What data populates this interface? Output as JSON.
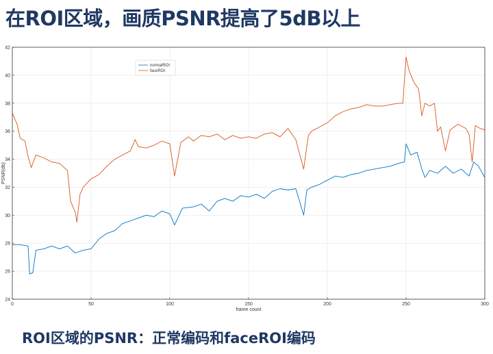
{
  "slide": {
    "title": "在ROI区域，画质PSNR提高了5dB以上",
    "caption": "ROI区域的PSNR：正常编码和faceROI编码"
  },
  "colors": {
    "title": "#1f3864",
    "normal": "#0072bd",
    "face": "#d95319",
    "grid": "#e6e6e6",
    "axis": "#333333"
  },
  "chart_data": {
    "type": "line",
    "xlabel": "frame count",
    "ylabel": "PSNR(db)",
    "xlim": [
      0,
      300
    ],
    "ylim": [
      24,
      42
    ],
    "xticks": [
      0,
      50,
      100,
      150,
      200,
      250,
      300
    ],
    "yticks": [
      24,
      26,
      28,
      30,
      32,
      34,
      36,
      38,
      40,
      42
    ],
    "grid": true,
    "legend_position": "top-left",
    "series": [
      {
        "name": "normalROI",
        "color": "#0072bd",
        "points": [
          [
            0,
            27.9
          ],
          [
            5,
            27.9
          ],
          [
            10,
            27.8
          ],
          [
            11,
            25.8
          ],
          [
            13,
            25.9
          ],
          [
            15,
            27.5
          ],
          [
            20,
            27.6
          ],
          [
            25,
            27.8
          ],
          [
            30,
            27.6
          ],
          [
            35,
            27.8
          ],
          [
            40,
            27.3
          ],
          [
            45,
            27.5
          ],
          [
            50,
            27.6
          ],
          [
            55,
            28.3
          ],
          [
            60,
            28.7
          ],
          [
            65,
            28.9
          ],
          [
            70,
            29.4
          ],
          [
            75,
            29.6
          ],
          [
            80,
            29.8
          ],
          [
            85,
            30.0
          ],
          [
            90,
            29.9
          ],
          [
            95,
            30.3
          ],
          [
            100,
            30.1
          ],
          [
            103,
            29.3
          ],
          [
            108,
            30.5
          ],
          [
            115,
            30.6
          ],
          [
            120,
            30.8
          ],
          [
            125,
            30.3
          ],
          [
            130,
            31.0
          ],
          [
            135,
            31.2
          ],
          [
            140,
            31.0
          ],
          [
            145,
            31.4
          ],
          [
            150,
            31.3
          ],
          [
            155,
            31.5
          ],
          [
            160,
            31.2
          ],
          [
            165,
            31.7
          ],
          [
            170,
            31.9
          ],
          [
            175,
            31.8
          ],
          [
            180,
            31.9
          ],
          [
            185,
            30.0
          ],
          [
            187,
            31.8
          ],
          [
            190,
            32.0
          ],
          [
            195,
            32.2
          ],
          [
            200,
            32.5
          ],
          [
            205,
            32.8
          ],
          [
            210,
            32.7
          ],
          [
            215,
            32.9
          ],
          [
            220,
            33.0
          ],
          [
            225,
            33.2
          ],
          [
            230,
            33.3
          ],
          [
            235,
            33.4
          ],
          [
            240,
            33.5
          ],
          [
            245,
            33.7
          ],
          [
            249,
            33.8
          ],
          [
            250,
            35.1
          ],
          [
            253,
            34.3
          ],
          [
            257,
            34.5
          ],
          [
            260,
            33.3
          ],
          [
            262,
            32.7
          ],
          [
            265,
            33.2
          ],
          [
            270,
            33.0
          ],
          [
            275,
            33.5
          ],
          [
            280,
            33.0
          ],
          [
            285,
            33.3
          ],
          [
            290,
            32.8
          ],
          [
            293,
            33.8
          ],
          [
            296,
            33.5
          ],
          [
            300,
            32.7
          ]
        ]
      },
      {
        "name": "faceROI",
        "color": "#d95319",
        "points": [
          [
            0,
            37.3
          ],
          [
            3,
            36.5
          ],
          [
            5,
            35.5
          ],
          [
            8,
            35.3
          ],
          [
            10,
            34.2
          ],
          [
            12,
            33.4
          ],
          [
            15,
            34.3
          ],
          [
            20,
            34.1
          ],
          [
            25,
            33.8
          ],
          [
            30,
            33.7
          ],
          [
            35,
            33.2
          ],
          [
            37,
            31.0
          ],
          [
            40,
            30.2
          ],
          [
            41,
            29.5
          ],
          [
            43,
            31.5
          ],
          [
            45,
            32.0
          ],
          [
            50,
            32.6
          ],
          [
            55,
            32.9
          ],
          [
            60,
            33.5
          ],
          [
            65,
            34.0
          ],
          [
            70,
            34.3
          ],
          [
            75,
            34.6
          ],
          [
            78,
            35.4
          ],
          [
            80,
            34.9
          ],
          [
            85,
            34.8
          ],
          [
            90,
            35.0
          ],
          [
            95,
            35.3
          ],
          [
            100,
            35.1
          ],
          [
            103,
            32.8
          ],
          [
            107,
            35.2
          ],
          [
            112,
            35.6
          ],
          [
            115,
            35.3
          ],
          [
            120,
            35.7
          ],
          [
            125,
            35.6
          ],
          [
            130,
            35.8
          ],
          [
            135,
            35.4
          ],
          [
            140,
            35.7
          ],
          [
            145,
            35.5
          ],
          [
            150,
            35.6
          ],
          [
            155,
            35.5
          ],
          [
            160,
            35.8
          ],
          [
            165,
            35.9
          ],
          [
            170,
            35.6
          ],
          [
            175,
            36.2
          ],
          [
            180,
            35.4
          ],
          [
            185,
            33.3
          ],
          [
            188,
            35.7
          ],
          [
            190,
            36.0
          ],
          [
            195,
            36.3
          ],
          [
            200,
            36.6
          ],
          [
            205,
            37.1
          ],
          [
            210,
            37.4
          ],
          [
            215,
            37.6
          ],
          [
            220,
            37.7
          ],
          [
            225,
            37.9
          ],
          [
            230,
            37.8
          ],
          [
            235,
            37.8
          ],
          [
            240,
            37.9
          ],
          [
            245,
            38.0
          ],
          [
            248,
            38.0
          ],
          [
            250,
            41.3
          ],
          [
            252,
            40.3
          ],
          [
            255,
            39.5
          ],
          [
            258,
            39.0
          ],
          [
            260,
            37.1
          ],
          [
            262,
            38.0
          ],
          [
            265,
            37.8
          ],
          [
            268,
            38.0
          ],
          [
            270,
            36.0
          ],
          [
            272,
            36.3
          ],
          [
            275,
            34.6
          ],
          [
            278,
            36.1
          ],
          [
            283,
            36.5
          ],
          [
            288,
            36.2
          ],
          [
            290,
            35.8
          ],
          [
            292,
            33.8
          ],
          [
            294,
            36.4
          ],
          [
            297,
            36.2
          ],
          [
            300,
            36.1
          ]
        ]
      }
    ]
  }
}
